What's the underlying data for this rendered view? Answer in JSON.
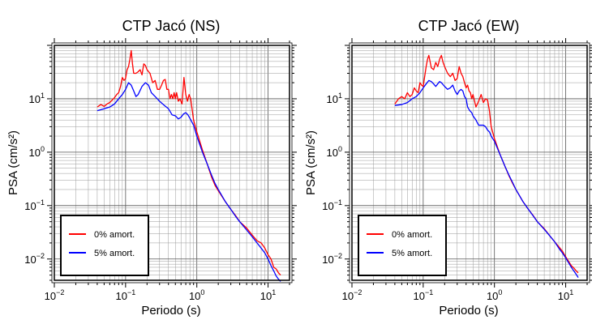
{
  "chart_data": [
    {
      "type": "line",
      "title": "CTP Jacó (NS)",
      "xlabel": "Periodo (s)",
      "ylabel": "PSA (cm/s²)",
      "xscale": "log",
      "yscale": "log",
      "xlim": [
        0.01,
        20
      ],
      "ylim": [
        0.004,
        100
      ],
      "grid": true,
      "legend_position": "bottom-left",
      "xticks": [
        {
          "value": 0.01,
          "base": "10",
          "exp": "−2"
        },
        {
          "value": 0.1,
          "base": "10",
          "exp": "−1"
        },
        {
          "value": 1,
          "base": "10",
          "exp": "0"
        },
        {
          "value": 10,
          "base": "10",
          "exp": "1"
        }
      ],
      "yticks": [
        {
          "value": 0.01,
          "base": "10",
          "exp": "−2"
        },
        {
          "value": 0.1,
          "base": "10",
          "exp": "−1"
        },
        {
          "value": 1,
          "base": "10",
          "exp": "0"
        },
        {
          "value": 10,
          "base": "10",
          "exp": "1"
        }
      ],
      "series": [
        {
          "name": "0% amort.",
          "color": "#ff0000",
          "points": [
            [
              0.04,
              7
            ],
            [
              0.045,
              7.8
            ],
            [
              0.05,
              7.2
            ],
            [
              0.055,
              8
            ],
            [
              0.06,
              8.5
            ],
            [
              0.065,
              9.5
            ],
            [
              0.07,
              10.5
            ],
            [
              0.075,
              12
            ],
            [
              0.08,
              13
            ],
            [
              0.085,
              17
            ],
            [
              0.09,
              25
            ],
            [
              0.095,
              22
            ],
            [
              0.1,
              24
            ],
            [
              0.105,
              35
            ],
            [
              0.11,
              40
            ],
            [
              0.115,
              55
            ],
            [
              0.12,
              80
            ],
            [
              0.125,
              45
            ],
            [
              0.13,
              30
            ],
            [
              0.14,
              30
            ],
            [
              0.15,
              32
            ],
            [
              0.16,
              35
            ],
            [
              0.17,
              28
            ],
            [
              0.18,
              45
            ],
            [
              0.19,
              42
            ],
            [
              0.2,
              35
            ],
            [
              0.22,
              30
            ],
            [
              0.24,
              20
            ],
            [
              0.26,
              22
            ],
            [
              0.28,
              15
            ],
            [
              0.3,
              15
            ],
            [
              0.32,
              18
            ],
            [
              0.34,
              22
            ],
            [
              0.36,
              23
            ],
            [
              0.38,
              15
            ],
            [
              0.4,
              15
            ],
            [
              0.42,
              10
            ],
            [
              0.44,
              12
            ],
            [
              0.46,
              10
            ],
            [
              0.48,
              13
            ],
            [
              0.5,
              10
            ],
            [
              0.52,
              13
            ],
            [
              0.55,
              9
            ],
            [
              0.58,
              10
            ],
            [
              0.62,
              8
            ],
            [
              0.66,
              25
            ],
            [
              0.7,
              12
            ],
            [
              0.74,
              9
            ],
            [
              0.78,
              12
            ],
            [
              0.82,
              10
            ],
            [
              0.9,
              4
            ],
            [
              1,
              2.4
            ],
            [
              1.2,
              1.1
            ],
            [
              1.4,
              0.6
            ],
            [
              1.6,
              0.35
            ],
            [
              1.8,
              0.24
            ],
            [
              2,
              0.19
            ],
            [
              2.5,
              0.12
            ],
            [
              3,
              0.085
            ],
            [
              3.5,
              0.065
            ],
            [
              4,
              0.05
            ],
            [
              5,
              0.038
            ],
            [
              6,
              0.028
            ],
            [
              7,
              0.022
            ],
            [
              8,
              0.02
            ],
            [
              9,
              0.016
            ],
            [
              10,
              0.012
            ],
            [
              11,
              0.01
            ],
            [
              12,
              0.007
            ],
            [
              13,
              0.0065
            ],
            [
              14,
              0.0055
            ],
            [
              15,
              0.005
            ]
          ]
        },
        {
          "name": "5% amort.",
          "color": "#0000ff",
          "points": [
            [
              0.04,
              6
            ],
            [
              0.05,
              6.5
            ],
            [
              0.06,
              7
            ],
            [
              0.07,
              8
            ],
            [
              0.08,
              10
            ],
            [
              0.09,
              12
            ],
            [
              0.1,
              15
            ],
            [
              0.11,
              20
            ],
            [
              0.12,
              18
            ],
            [
              0.13,
              14
            ],
            [
              0.14,
              11
            ],
            [
              0.15,
              12
            ],
            [
              0.17,
              17
            ],
            [
              0.19,
              20
            ],
            [
              0.21,
              18
            ],
            [
              0.23,
              13
            ],
            [
              0.26,
              11
            ],
            [
              0.3,
              9
            ],
            [
              0.35,
              7.5
            ],
            [
              0.4,
              6.5
            ],
            [
              0.45,
              5
            ],
            [
              0.5,
              4.8
            ],
            [
              0.55,
              4.2
            ],
            [
              0.6,
              4.5
            ],
            [
              0.65,
              5.2
            ],
            [
              0.7,
              5.5
            ],
            [
              0.75,
              5
            ],
            [
              0.8,
              4.3
            ],
            [
              0.9,
              3.2
            ],
            [
              1,
              2
            ],
            [
              1.2,
              1
            ],
            [
              1.4,
              0.6
            ],
            [
              1.6,
              0.38
            ],
            [
              1.8,
              0.26
            ],
            [
              2,
              0.2
            ],
            [
              2.5,
              0.12
            ],
            [
              3,
              0.085
            ],
            [
              3.5,
              0.063
            ],
            [
              4,
              0.05
            ],
            [
              5,
              0.035
            ],
            [
              6,
              0.026
            ],
            [
              7,
              0.02
            ],
            [
              8,
              0.016
            ],
            [
              9,
              0.013
            ],
            [
              10,
              0.01
            ],
            [
              11,
              0.0075
            ],
            [
              12,
              0.006
            ],
            [
              13,
              0.0048
            ],
            [
              14,
              0.0042
            ],
            [
              15,
              0.0038
            ]
          ]
        }
      ]
    },
    {
      "type": "line",
      "title": "CTP Jacó (EW)",
      "xlabel": "Periodo (s)",
      "ylabel": "PSA (cm/s²)",
      "xscale": "log",
      "yscale": "log",
      "xlim": [
        0.01,
        20
      ],
      "ylim": [
        0.004,
        100
      ],
      "grid": true,
      "legend_position": "bottom-left",
      "xticks": [
        {
          "value": 0.01,
          "base": "10",
          "exp": "−2"
        },
        {
          "value": 0.1,
          "base": "10",
          "exp": "−1"
        },
        {
          "value": 1,
          "base": "10",
          "exp": "0"
        },
        {
          "value": 10,
          "base": "10",
          "exp": "1"
        }
      ],
      "yticks": [
        {
          "value": 0.01,
          "base": "10",
          "exp": "−2"
        },
        {
          "value": 0.1,
          "base": "10",
          "exp": "−1"
        },
        {
          "value": 1,
          "base": "10",
          "exp": "0"
        },
        {
          "value": 10,
          "base": "10",
          "exp": "1"
        }
      ],
      "series": [
        {
          "name": "0% amort.",
          "color": "#ff0000",
          "points": [
            [
              0.04,
              8
            ],
            [
              0.045,
              10
            ],
            [
              0.05,
              11
            ],
            [
              0.055,
              10
            ],
            [
              0.06,
              13
            ],
            [
              0.065,
              11
            ],
            [
              0.07,
              12
            ],
            [
              0.075,
              16
            ],
            [
              0.08,
              14
            ],
            [
              0.085,
              13
            ],
            [
              0.09,
              20
            ],
            [
              0.095,
              18
            ],
            [
              0.1,
              17
            ],
            [
              0.11,
              40
            ],
            [
              0.115,
              55
            ],
            [
              0.12,
              65
            ],
            [
              0.13,
              38
            ],
            [
              0.14,
              35
            ],
            [
              0.15,
              48
            ],
            [
              0.16,
              40
            ],
            [
              0.17,
              55
            ],
            [
              0.18,
              65
            ],
            [
              0.19,
              48
            ],
            [
              0.2,
              40
            ],
            [
              0.22,
              30
            ],
            [
              0.24,
              26
            ],
            [
              0.26,
              30
            ],
            [
              0.28,
              22
            ],
            [
              0.3,
              24
            ],
            [
              0.32,
              40
            ],
            [
              0.34,
              30
            ],
            [
              0.36,
              26
            ],
            [
              0.38,
              20
            ],
            [
              0.4,
              16
            ],
            [
              0.42,
              18
            ],
            [
              0.44,
              14
            ],
            [
              0.46,
              13
            ],
            [
              0.48,
              10
            ],
            [
              0.5,
              12
            ],
            [
              0.55,
              7
            ],
            [
              0.6,
              9
            ],
            [
              0.65,
              12
            ],
            [
              0.7,
              8.5
            ],
            [
              0.75,
              10
            ],
            [
              0.8,
              9.5
            ],
            [
              0.85,
              6
            ],
            [
              0.9,
              3
            ],
            [
              1,
              1.8
            ],
            [
              1.2,
              0.9
            ],
            [
              1.4,
              0.55
            ],
            [
              1.6,
              0.36
            ],
            [
              1.8,
              0.26
            ],
            [
              2,
              0.2
            ],
            [
              2.5,
              0.12
            ],
            [
              3,
              0.085
            ],
            [
              3.5,
              0.065
            ],
            [
              4,
              0.05
            ],
            [
              5,
              0.037
            ],
            [
              6,
              0.027
            ],
            [
              7,
              0.021
            ],
            [
              8,
              0.017
            ],
            [
              9,
              0.014
            ],
            [
              10,
              0.011
            ],
            [
              11,
              0.009
            ],
            [
              12,
              0.0075
            ],
            [
              13,
              0.0068
            ],
            [
              14,
              0.006
            ],
            [
              15,
              0.0055
            ]
          ]
        },
        {
          "name": "5% amort.",
          "color": "#0000ff",
          "points": [
            [
              0.04,
              7.5
            ],
            [
              0.05,
              7.8
            ],
            [
              0.06,
              8.5
            ],
            [
              0.07,
              10
            ],
            [
              0.08,
              11
            ],
            [
              0.09,
              13
            ],
            [
              0.1,
              16
            ],
            [
              0.11,
              19
            ],
            [
              0.12,
              22
            ],
            [
              0.13,
              21
            ],
            [
              0.14,
              19
            ],
            [
              0.15,
              17
            ],
            [
              0.16,
              19
            ],
            [
              0.17,
              21
            ],
            [
              0.18,
              20
            ],
            [
              0.2,
              17
            ],
            [
              0.22,
              15
            ],
            [
              0.24,
              16
            ],
            [
              0.26,
              18
            ],
            [
              0.28,
              14
            ],
            [
              0.3,
              12
            ],
            [
              0.32,
              14
            ],
            [
              0.34,
              15
            ],
            [
              0.36,
              14
            ],
            [
              0.38,
              11
            ],
            [
              0.4,
              10
            ],
            [
              0.42,
              7
            ],
            [
              0.45,
              6
            ],
            [
              0.48,
              5.5
            ],
            [
              0.5,
              4.8
            ],
            [
              0.55,
              4
            ],
            [
              0.6,
              3.2
            ],
            [
              0.65,
              3.2
            ],
            [
              0.7,
              3.2
            ],
            [
              0.75,
              3
            ],
            [
              0.8,
              2.6
            ],
            [
              0.85,
              2.4
            ],
            [
              0.9,
              2
            ],
            [
              1,
              1.6
            ],
            [
              1.2,
              0.9
            ],
            [
              1.4,
              0.55
            ],
            [
              1.6,
              0.37
            ],
            [
              1.8,
              0.27
            ],
            [
              2,
              0.2
            ],
            [
              2.5,
              0.12
            ],
            [
              3,
              0.085
            ],
            [
              3.5,
              0.064
            ],
            [
              4,
              0.05
            ],
            [
              5,
              0.036
            ],
            [
              6,
              0.027
            ],
            [
              7,
              0.021
            ],
            [
              8,
              0.016
            ],
            [
              9,
              0.013
            ],
            [
              10,
              0.0105
            ],
            [
              11,
              0.0085
            ],
            [
              12,
              0.007
            ],
            [
              13,
              0.006
            ],
            [
              14,
              0.0052
            ],
            [
              15,
              0.0045
            ]
          ]
        }
      ]
    }
  ]
}
